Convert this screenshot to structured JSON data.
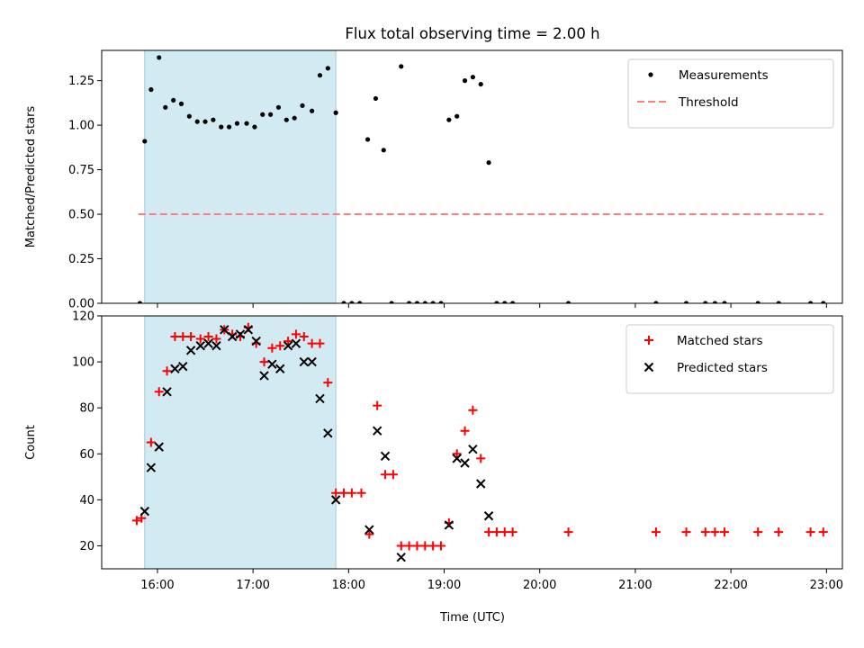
{
  "figure": {
    "title": "Flux total observing time = 2.00 h",
    "xlabel": "Time (UTC)"
  },
  "colors": {
    "measurement": "#000000",
    "threshold": "#ff7f7f",
    "matched": "#ff0000",
    "predicted": "#000000",
    "span": "#add8e6"
  },
  "chart_data": [
    {
      "type": "scatter",
      "ylabel": "Matched/Predicted stars",
      "xlim": [
        "15:25",
        "23:10"
      ],
      "ylim": [
        0,
        1.42
      ],
      "x_ticks": [
        "16:00",
        "17:00",
        "18:00",
        "19:00",
        "20:00",
        "21:00",
        "22:00",
        "23:00"
      ],
      "y_ticks": [
        "0.00",
        "0.25",
        "0.50",
        "0.75",
        "1.00",
        "1.25"
      ],
      "highlight_span": [
        "15:52",
        "17:52"
      ],
      "legend": {
        "position": "top-right",
        "entries": [
          "Measurements",
          "Threshold"
        ]
      },
      "threshold": {
        "name": "Threshold",
        "y": 0.5,
        "x_range": [
          "15:48",
          "22:58"
        ]
      },
      "series": [
        {
          "name": "Measurements",
          "points": [
            [
              "15:49",
              0.0
            ],
            [
              "15:52",
              0.91
            ],
            [
              "15:56",
              1.2
            ],
            [
              "16:01",
              1.38
            ],
            [
              "16:05",
              1.1
            ],
            [
              "16:10",
              1.14
            ],
            [
              "16:15",
              1.12
            ],
            [
              "16:20",
              1.05
            ],
            [
              "16:25",
              1.02
            ],
            [
              "16:30",
              1.02
            ],
            [
              "16:35",
              1.03
            ],
            [
              "16:40",
              0.99
            ],
            [
              "16:45",
              0.99
            ],
            [
              "16:50",
              1.01
            ],
            [
              "16:56",
              1.01
            ],
            [
              "17:01",
              0.99
            ],
            [
              "17:06",
              1.06
            ],
            [
              "17:11",
              1.06
            ],
            [
              "17:16",
              1.1
            ],
            [
              "17:21",
              1.03
            ],
            [
              "17:26",
              1.04
            ],
            [
              "17:31",
              1.11
            ],
            [
              "17:37",
              1.08
            ],
            [
              "17:42",
              1.28
            ],
            [
              "17:47",
              1.32
            ],
            [
              "17:52",
              1.07
            ],
            [
              "17:57",
              0.0
            ],
            [
              "18:02",
              0.0
            ],
            [
              "18:07",
              0.0
            ],
            [
              "18:12",
              0.92
            ],
            [
              "18:17",
              1.15
            ],
            [
              "18:22",
              0.86
            ],
            [
              "18:27",
              0.0
            ],
            [
              "18:33",
              1.33
            ],
            [
              "18:38",
              0.0
            ],
            [
              "18:43",
              0.0
            ],
            [
              "18:48",
              0.0
            ],
            [
              "18:53",
              0.0
            ],
            [
              "18:58",
              0.0
            ],
            [
              "19:03",
              1.03
            ],
            [
              "19:08",
              1.05
            ],
            [
              "19:13",
              1.25
            ],
            [
              "19:18",
              1.27
            ],
            [
              "19:23",
              1.23
            ],
            [
              "19:28",
              0.79
            ],
            [
              "19:33",
              0.0
            ],
            [
              "19:38",
              0.0
            ],
            [
              "19:43",
              0.0
            ],
            [
              "20:18",
              0.0
            ],
            [
              "21:13",
              0.0
            ],
            [
              "21:32",
              0.0
            ],
            [
              "21:44",
              0.0
            ],
            [
              "21:50",
              0.0
            ],
            [
              "21:56",
              0.0
            ],
            [
              "22:17",
              0.0
            ],
            [
              "22:30",
              0.0
            ],
            [
              "22:50",
              0.0
            ],
            [
              "22:58",
              0.0
            ]
          ]
        }
      ]
    },
    {
      "type": "scatter",
      "ylabel": "Count",
      "xlim": [
        "15:25",
        "23:10"
      ],
      "ylim": [
        10,
        120
      ],
      "x_ticks": [
        "16:00",
        "17:00",
        "18:00",
        "19:00",
        "20:00",
        "21:00",
        "22:00",
        "23:00"
      ],
      "y_ticks": [
        "20",
        "40",
        "60",
        "80",
        "100",
        "120"
      ],
      "highlight_span": [
        "15:52",
        "17:52"
      ],
      "legend": {
        "position": "top-right",
        "entries": [
          "Matched stars",
          "Predicted stars"
        ]
      },
      "series": [
        {
          "name": "Matched stars",
          "marker": "plus",
          "points": [
            [
              "15:47",
              31
            ],
            [
              "15:50",
              32
            ],
            [
              "15:56",
              65
            ],
            [
              "16:01",
              87
            ],
            [
              "16:06",
              96
            ],
            [
              "16:11",
              111
            ],
            [
              "16:16",
              111
            ],
            [
              "16:21",
              111
            ],
            [
              "16:27",
              110
            ],
            [
              "16:32",
              111
            ],
            [
              "16:37",
              110
            ],
            [
              "16:42",
              114
            ],
            [
              "16:47",
              112
            ],
            [
              "16:52",
              111
            ],
            [
              "16:57",
              115
            ],
            [
              "17:02",
              108
            ],
            [
              "17:07",
              100
            ],
            [
              "17:12",
              106
            ],
            [
              "17:17",
              107
            ],
            [
              "17:22",
              109
            ],
            [
              "17:27",
              112
            ],
            [
              "17:32",
              111
            ],
            [
              "17:37",
              108
            ],
            [
              "17:42",
              108
            ],
            [
              "17:47",
              91
            ],
            [
              "17:52",
              43
            ],
            [
              "17:57",
              43
            ],
            [
              "18:02",
              43
            ],
            [
              "18:08",
              43
            ],
            [
              "18:13",
              25
            ],
            [
              "18:18",
              81
            ],
            [
              "18:23",
              51
            ],
            [
              "18:28",
              51
            ],
            [
              "18:33",
              20
            ],
            [
              "18:38",
              20
            ],
            [
              "18:43",
              20
            ],
            [
              "18:48",
              20
            ],
            [
              "18:53",
              20
            ],
            [
              "18:58",
              20
            ],
            [
              "19:03",
              30
            ],
            [
              "19:08",
              60
            ],
            [
              "19:13",
              70
            ],
            [
              "19:18",
              79
            ],
            [
              "19:23",
              58
            ],
            [
              "19:28",
              26
            ],
            [
              "19:33",
              26
            ],
            [
              "19:38",
              26
            ],
            [
              "19:43",
              26
            ],
            [
              "20:18",
              26
            ],
            [
              "21:13",
              26
            ],
            [
              "21:32",
              26
            ],
            [
              "21:44",
              26
            ],
            [
              "21:50",
              26
            ],
            [
              "21:56",
              26
            ],
            [
              "22:17",
              26
            ],
            [
              "22:30",
              26
            ],
            [
              "22:50",
              26
            ],
            [
              "22:58",
              26
            ]
          ]
        },
        {
          "name": "Predicted stars",
          "marker": "cross",
          "points": [
            [
              "15:52",
              35
            ],
            [
              "15:56",
              54
            ],
            [
              "16:01",
              63
            ],
            [
              "16:06",
              87
            ],
            [
              "16:11",
              97
            ],
            [
              "16:16",
              98
            ],
            [
              "16:21",
              105
            ],
            [
              "16:27",
              107
            ],
            [
              "16:32",
              108
            ],
            [
              "16:37",
              107
            ],
            [
              "16:42",
              114
            ],
            [
              "16:47",
              111
            ],
            [
              "16:52",
              112
            ],
            [
              "16:57",
              114
            ],
            [
              "17:02",
              109
            ],
            [
              "17:07",
              94
            ],
            [
              "17:12",
              99
            ],
            [
              "17:17",
              97
            ],
            [
              "17:22",
              107
            ],
            [
              "17:27",
              108
            ],
            [
              "17:32",
              100
            ],
            [
              "17:37",
              100
            ],
            [
              "17:42",
              84
            ],
            [
              "17:47",
              69
            ],
            [
              "17:52",
              40
            ],
            [
              "18:13",
              27
            ],
            [
              "18:18",
              70
            ],
            [
              "18:23",
              59
            ],
            [
              "18:33",
              15
            ],
            [
              "19:03",
              29
            ],
            [
              "19:08",
              58
            ],
            [
              "19:13",
              56
            ],
            [
              "19:18",
              62
            ],
            [
              "19:23",
              47
            ],
            [
              "19:28",
              33
            ]
          ]
        }
      ]
    }
  ]
}
